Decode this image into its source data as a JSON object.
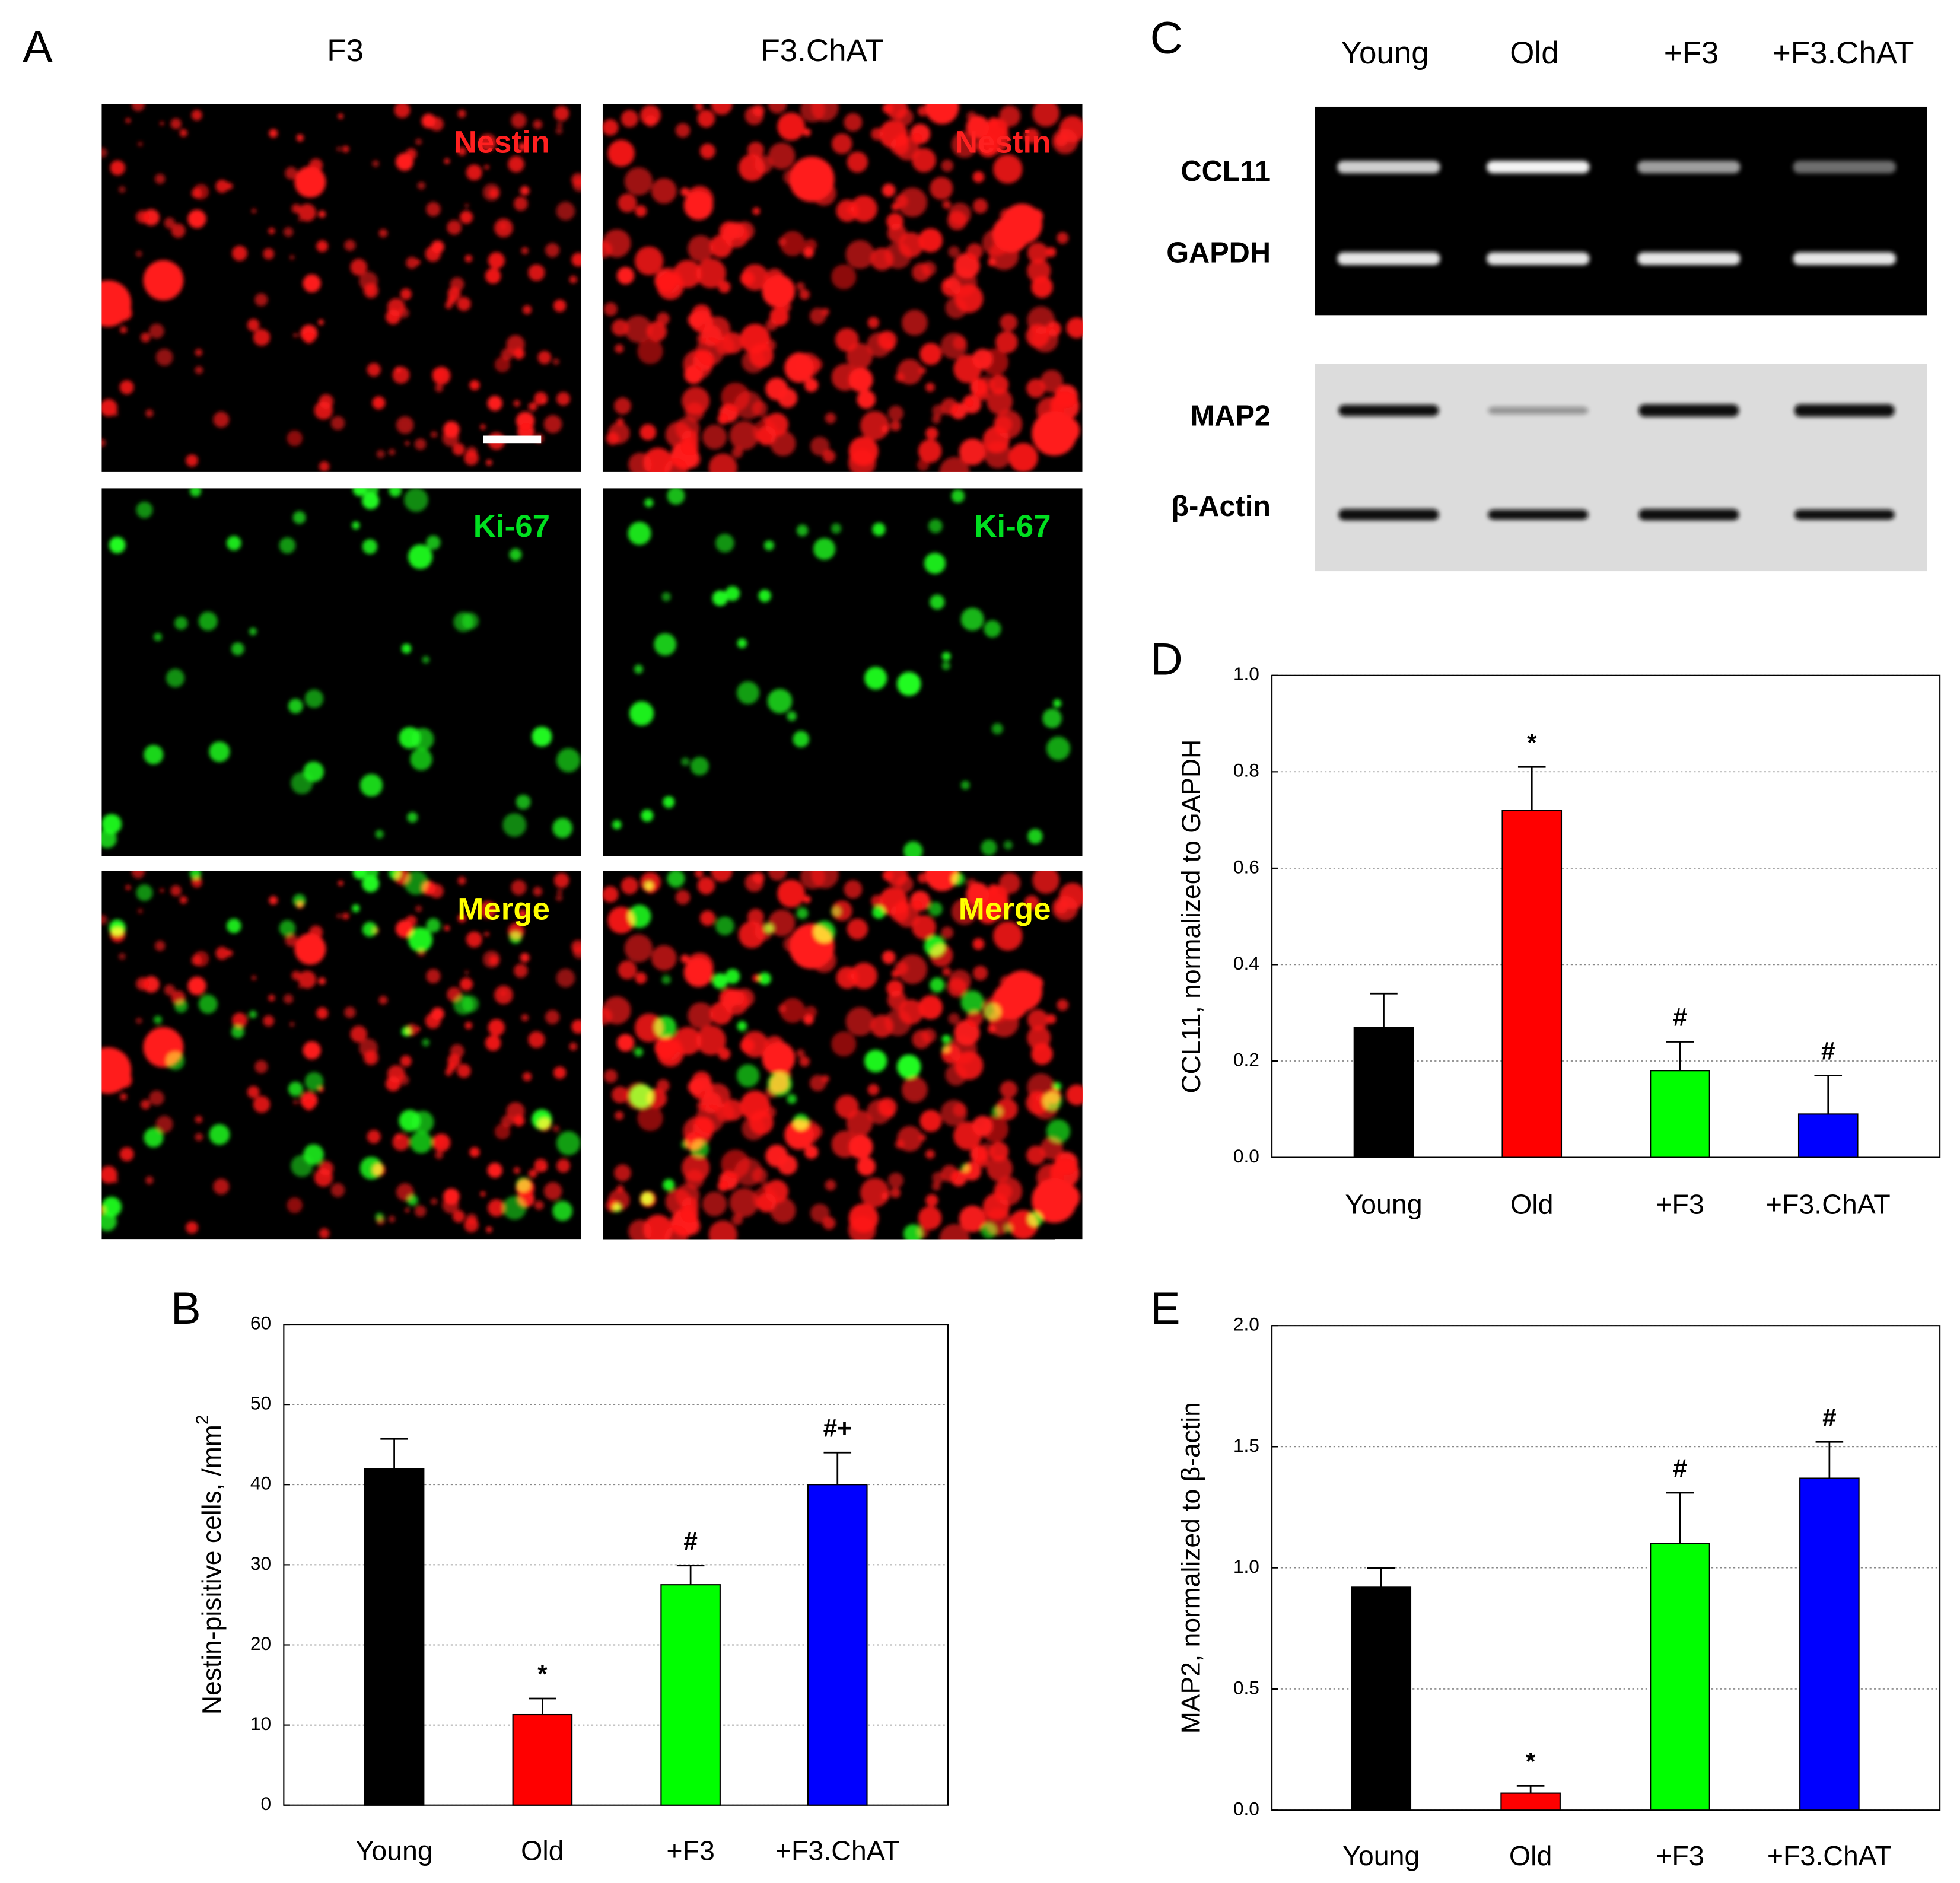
{
  "panel_labels": [
    "A",
    "B",
    "C",
    "D",
    "E"
  ],
  "micrographs": {
    "columns": [
      "F3",
      "F3.ChAT"
    ],
    "stains": [
      "Nestin",
      "Ki-67",
      "Merge"
    ]
  },
  "blots": {
    "lanes": [
      "Young",
      "Old",
      "+F3",
      "+F3.ChAT"
    ],
    "gel_bands": [
      "CCL11",
      "GAPDH"
    ],
    "western_bands": [
      "MAP2",
      "β-Actin"
    ]
  },
  "chart_data": [
    {
      "type": "bar",
      "y_label": "Nestin-pisitive cells, /mm",
      "y_label_superscript": "2",
      "categories": [
        "Young",
        "Old",
        "+F3",
        "+F3.ChAT"
      ],
      "values": [
        42,
        11.3,
        27.5,
        40
      ],
      "errors": [
        3.7,
        2,
        2.4,
        4
      ],
      "colors": [
        "#000000",
        "#ff0000",
        "#00ff00",
        "#0000ff"
      ],
      "ylim": [
        0,
        60
      ],
      "yticks": [
        0,
        10,
        20,
        30,
        40,
        50,
        60
      ],
      "grid": true,
      "annotations": [
        {
          "x": "Old",
          "text": "*"
        },
        {
          "x": "+F3",
          "text": "#"
        },
        {
          "x": "+F3.ChAT",
          "text": "#+"
        }
      ]
    },
    {
      "type": "bar",
      "y_label": "CCL11, normalized to GAPDH",
      "categories": [
        "Young",
        "Old",
        "+F3",
        "+F3.ChAT"
      ],
      "values": [
        0.27,
        0.72,
        0.18,
        0.09
      ],
      "errors": [
        0.07,
        0.09,
        0.06,
        0.08
      ],
      "colors": [
        "#000000",
        "#ff0000",
        "#00ff00",
        "#0000ff"
      ],
      "ylim": [
        0,
        1.0
      ],
      "yticks": [
        {
          "value": 0,
          "label": "0.0"
        },
        0.2,
        0.4,
        0.6,
        0.8,
        {
          "value": 1,
          "label": "1.0"
        }
      ],
      "grid": true,
      "annotations": [
        {
          "x": "Old",
          "text": "*"
        },
        {
          "x": "+F3",
          "text": "#"
        },
        {
          "x": "+F3.ChAT",
          "text": "#"
        }
      ]
    },
    {
      "type": "bar",
      "y_label": "MAP2, normalized to β-actin",
      "categories": [
        "Young",
        "Old",
        "+F3",
        "+F3.ChAT"
      ],
      "values": [
        0.92,
        0.07,
        1.1,
        1.37
      ],
      "errors": [
        0.08,
        0.03,
        0.21,
        0.15
      ],
      "colors": [
        "#000000",
        "#ff0000",
        "#00ff00",
        "#0000ff"
      ],
      "ylim": [
        0,
        2.0
      ],
      "yticks": [
        {
          "value": 0,
          "label": "0.0"
        },
        0.5,
        {
          "value": 1,
          "label": "1.0"
        },
        1.5,
        {
          "value": 2,
          "label": "2.0"
        }
      ],
      "grid": true,
      "annotations": [
        {
          "x": "Old",
          "text": "*"
        },
        {
          "x": "+F3",
          "text": "#"
        },
        {
          "x": "+F3.ChAT",
          "text": "#"
        }
      ]
    }
  ]
}
